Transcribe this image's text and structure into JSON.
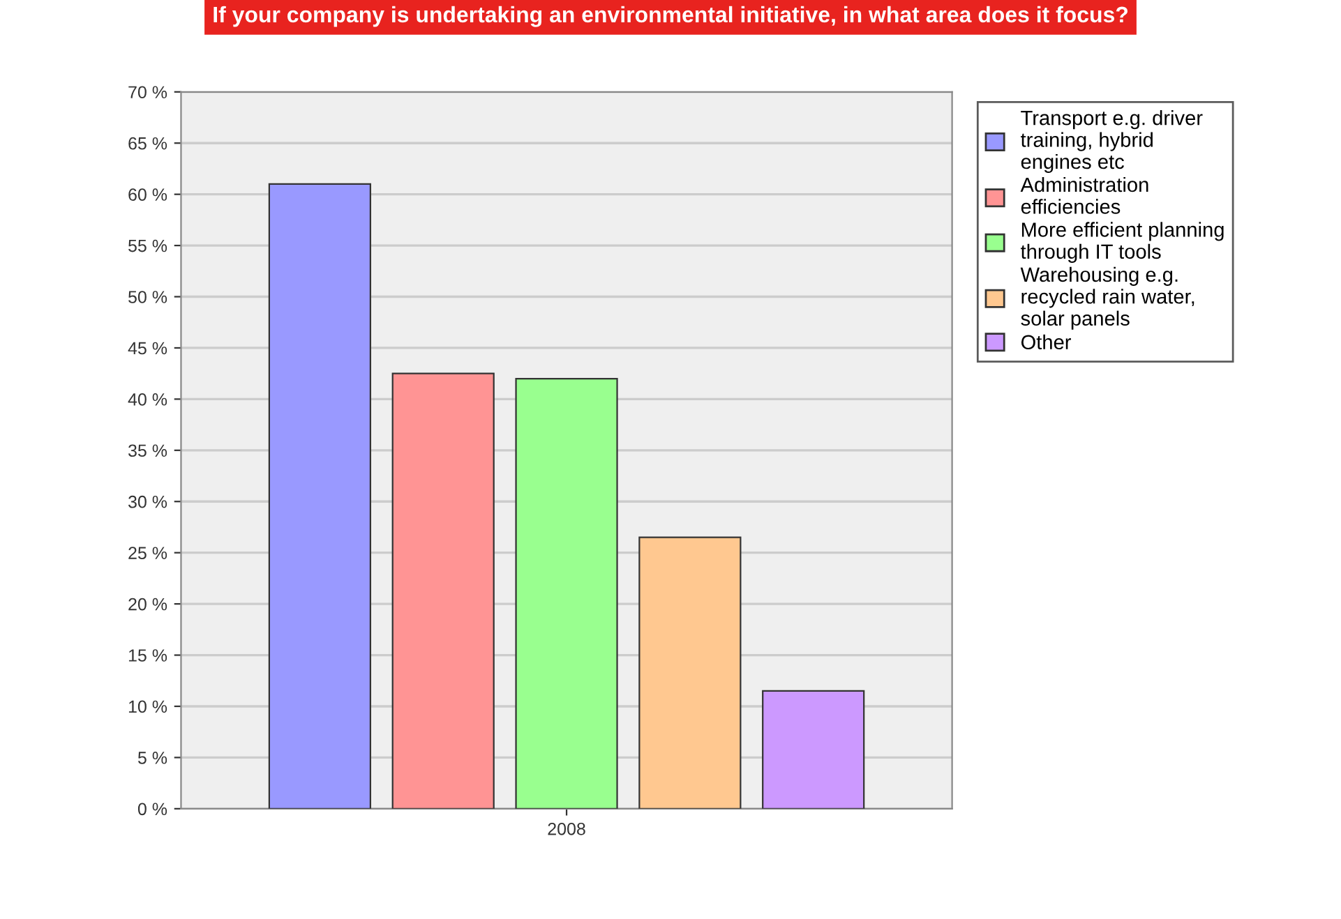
{
  "chart_data": {
    "type": "bar",
    "title": "If your company is undertaking an environmental initiative, in what area does it focus?",
    "categories": [
      "2008"
    ],
    "series": [
      {
        "name": "Transport e.g. driver\ntraining, hybrid\nengines etc",
        "color": "#9999ff",
        "values": [
          61
        ]
      },
      {
        "name": "Administration\nefficiencies",
        "color": "#ff9494",
        "values": [
          42.5
        ]
      },
      {
        "name": "More efficient planning\nthrough IT tools",
        "color": "#99ff8f",
        "values": [
          42
        ]
      },
      {
        "name": "Warehousing e.g.\nrecycled rain water,\nsolar panels",
        "color": "#ffc890",
        "values": [
          26.5
        ]
      },
      {
        "name": "Other",
        "color": "#cc99ff",
        "values": [
          11.5
        ]
      }
    ],
    "ylim": [
      0,
      70
    ],
    "yticks": [
      {
        "value": 0,
        "label": "0 %"
      },
      {
        "value": 5,
        "label": "5 %"
      },
      {
        "value": 10,
        "label": "10 %"
      },
      {
        "value": 15,
        "label": "15 %"
      },
      {
        "value": 20,
        "label": "20 %"
      },
      {
        "value": 25,
        "label": "25 %"
      },
      {
        "value": 30,
        "label": "30 %"
      },
      {
        "value": 35,
        "label": "35 %"
      },
      {
        "value": 40,
        "label": "40 %"
      },
      {
        "value": 45,
        "label": "45 %"
      },
      {
        "value": 50,
        "label": "50 %"
      },
      {
        "value": 55,
        "label": "55 %"
      },
      {
        "value": 60,
        "label": "60 %"
      },
      {
        "value": 65,
        "label": "65 %"
      },
      {
        "value": 70,
        "label": "70 %"
      }
    ],
    "grid": "y",
    "legend": "right"
  }
}
